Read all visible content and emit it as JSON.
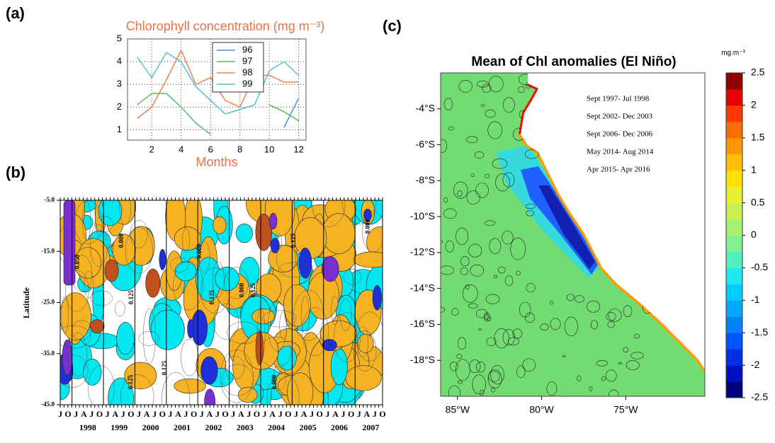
{
  "chart_data": [
    {
      "type": "line",
      "panel_label": "(a)",
      "title": "Chlorophyll concentration (mg m⁻³)",
      "xlabel": "Months",
      "x": [
        1,
        2,
        3,
        4,
        5,
        6,
        7,
        8,
        9,
        10,
        11,
        12
      ],
      "series": [
        {
          "name": "96",
          "color": "#4f8fcf",
          "values": [
            null,
            null,
            null,
            null,
            null,
            null,
            null,
            null,
            null,
            null,
            1.1,
            2.4
          ]
        },
        {
          "name": "97",
          "color": "#5cb85c",
          "values": [
            2.1,
            2.6,
            2.6,
            2.0,
            1.3,
            0.8,
            null,
            null,
            null,
            2.1,
            1.8,
            1.4
          ]
        },
        {
          "name": "98",
          "color": "#f08050",
          "values": [
            1.5,
            2.0,
            3.2,
            4.5,
            3.0,
            3.3,
            2.3,
            2.0,
            3.4,
            3.4,
            3.1,
            3.1
          ]
        },
        {
          "name": "99",
          "color": "#56c0c8",
          "values": [
            4.2,
            3.3,
            4.4,
            4.0,
            2.9,
            2.3,
            1.7,
            1.9,
            2.1,
            3.6,
            4.0,
            3.4
          ]
        }
      ],
      "xlim": [
        0.35,
        12.5
      ],
      "xticks": [
        2,
        4,
        6,
        8,
        10,
        12
      ],
      "ylim": [
        0.55,
        5
      ],
      "yticks": [
        1,
        2,
        3,
        4,
        5
      ],
      "grid": true,
      "legend": "top"
    },
    {
      "type": "contour",
      "panel_label": "(b)",
      "ylabel": "Latitude",
      "ylim": [
        -45,
        -5
      ],
      "yticks": [
        {
          "value": -5,
          "label": "-5.0"
        },
        {
          "value": -15,
          "label": "-15.0"
        },
        {
          "value": -25,
          "label": "-25.0"
        },
        {
          "value": -35,
          "label": "-35.0"
        },
        {
          "value": -45,
          "label": "-45.0"
        }
      ],
      "month_labels": [
        "J",
        "O",
        "J",
        "A",
        "J",
        "O",
        "J",
        "A",
        "J",
        "O",
        "J",
        "A",
        "J",
        "O",
        "J",
        "A",
        "J",
        "O",
        "J",
        "A",
        "J",
        "O",
        "J",
        "A",
        "J",
        "O",
        "J",
        "A",
        "J",
        "O",
        "J",
        "A",
        "J",
        "O",
        "J",
        "A",
        "J",
        "O",
        "J",
        "A",
        "J",
        "O"
      ],
      "year_labels": [
        "1998",
        "1999",
        "2000",
        "2001",
        "2002",
        "2003",
        "2004",
        "2005",
        "2006",
        "2007"
      ],
      "contour_labels": [
        "0.050",
        "0.000",
        "0.125",
        "0.000",
        "0.125",
        "0.125",
        "0.000",
        "0.125",
        "0.000",
        "0.125",
        "0.000",
        "0.125"
      ]
    },
    {
      "type": "map",
      "panel_label": "(c)",
      "title": "Mean of Chl anomalies (El Niño)",
      "colorbar_label": "mg.m⁻³",
      "annotations": [
        "Sept 1997- Jul 1998",
        "Sept 2002- Dec 2003",
        "Sept 2006- Dec 2006",
        "May 2014- Aug 2014",
        "Apr 2015- Apr 2016"
      ],
      "xlim": [
        -86,
        -70.3
      ],
      "xticks": [
        {
          "value": -85,
          "label": "85°W"
        },
        {
          "value": -80,
          "label": "80°W"
        },
        {
          "value": -75,
          "label": "75°W"
        }
      ],
      "ylim": [
        -20,
        -2
      ],
      "yticks": [
        {
          "value": -4,
          "label": "-4°S"
        },
        {
          "value": -6,
          "label": "-6°S"
        },
        {
          "value": -8,
          "label": "-8°S"
        },
        {
          "value": -10,
          "label": "-10°S"
        },
        {
          "value": -12,
          "label": "-12°S"
        },
        {
          "value": -14,
          "label": "-14°S"
        },
        {
          "value": -16,
          "label": "-16°S"
        },
        {
          "value": -18,
          "label": "-18°S"
        }
      ],
      "clim": [
        -2.5,
        2.5
      ],
      "cticks": [
        2.5,
        2,
        1.5,
        1,
        0.5,
        0,
        -0.5,
        -1,
        -1.5,
        -2,
        -2.5
      ],
      "colors": [
        "#00007f",
        "#0010c0",
        "#0030e8",
        "#0055ff",
        "#0080ff",
        "#00a8ff",
        "#00cdff",
        "#20e8f0",
        "#50f0c0",
        "#80f090",
        "#a8f070",
        "#c8f050",
        "#e8f030",
        "#ffe000",
        "#ffc000",
        "#ff9800",
        "#ff6c00",
        "#ff3800",
        "#e80000",
        "#8f0000"
      ]
    }
  ]
}
